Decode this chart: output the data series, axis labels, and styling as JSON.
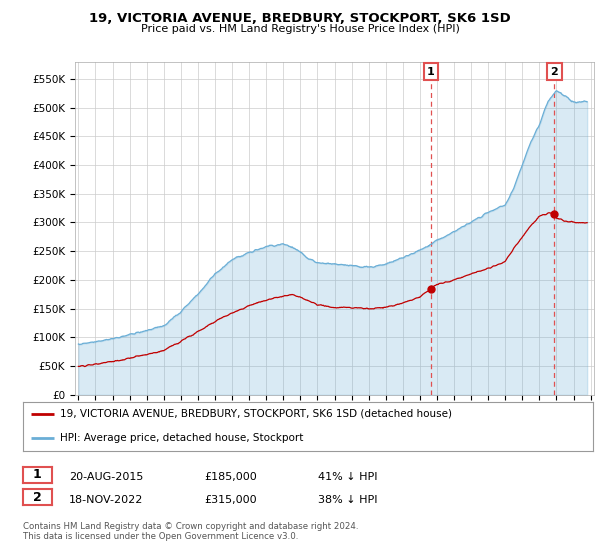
{
  "title_line1": "19, VICTORIA AVENUE, BREDBURY, STOCKPORT, SK6 1SD",
  "title_line2": "Price paid vs. HM Land Registry's House Price Index (HPI)",
  "ylabel_ticks": [
    "£0",
    "£50K",
    "£100K",
    "£150K",
    "£200K",
    "£250K",
    "£300K",
    "£350K",
    "£400K",
    "£450K",
    "£500K",
    "£550K"
  ],
  "ytick_values": [
    0,
    50000,
    100000,
    150000,
    200000,
    250000,
    300000,
    350000,
    400000,
    450000,
    500000,
    550000
  ],
  "ylim": [
    0,
    580000
  ],
  "xlim_start": 1994.8,
  "xlim_end": 2025.2,
  "hpi_color": "#6aaed6",
  "hpi_fill_color": "#ddeeff",
  "price_color": "#c00000",
  "vline_color": "#e05050",
  "marker1_date_x": 2015.64,
  "marker1_y": 185000,
  "marker2_date_x": 2022.88,
  "marker2_y": 315000,
  "annotation1_label": "1",
  "annotation2_label": "2",
  "legend_line1": "19, VICTORIA AVENUE, BREDBURY, STOCKPORT, SK6 1SD (detached house)",
  "legend_line2": "HPI: Average price, detached house, Stockport",
  "table_row1": [
    "1",
    "20-AUG-2015",
    "£185,000",
    "41% ↓ HPI"
  ],
  "table_row2": [
    "2",
    "18-NOV-2022",
    "£315,000",
    "38% ↓ HPI"
  ],
  "footnote": "Contains HM Land Registry data © Crown copyright and database right 2024.\nThis data is licensed under the Open Government Licence v3.0.",
  "background_color": "#ffffff",
  "grid_color": "#cccccc",
  "hpi_keypoints_x": [
    1995,
    1996,
    1997,
    1998,
    1999,
    2000,
    2001,
    2002,
    2003,
    2004,
    2005,
    2006,
    2007,
    2007.5,
    2008,
    2008.5,
    2009,
    2010,
    2011,
    2012,
    2013,
    2014,
    2015,
    2016,
    2017,
    2018,
    2019,
    2020,
    2020.5,
    2021,
    2021.5,
    2022,
    2022.5,
    2023,
    2023.5,
    2024,
    2024.5
  ],
  "hpi_keypoints_y": [
    88000,
    92000,
    98000,
    105000,
    112000,
    120000,
    145000,
    175000,
    210000,
    235000,
    248000,
    258000,
    262000,
    258000,
    248000,
    237000,
    230000,
    228000,
    225000,
    222000,
    228000,
    238000,
    252000,
    268000,
    285000,
    300000,
    318000,
    330000,
    360000,
    400000,
    440000,
    470000,
    510000,
    530000,
    520000,
    510000,
    510000
  ],
  "price_keypoints_x": [
    1995,
    1996,
    1997,
    1998,
    1999,
    2000,
    2001,
    2002,
    2003,
    2004,
    2005,
    2006,
    2007,
    2007.5,
    2008,
    2009,
    2010,
    2011,
    2012,
    2013,
    2014,
    2015,
    2015.64,
    2016,
    2017,
    2018,
    2019,
    2020,
    2020.5,
    2021,
    2021.5,
    2022,
    2022.5,
    2022.88,
    2023,
    2023.5,
    2024,
    2024.5
  ],
  "price_keypoints_y": [
    50000,
    53000,
    58000,
    64000,
    70000,
    77000,
    93000,
    110000,
    128000,
    143000,
    155000,
    165000,
    172000,
    175000,
    170000,
    157000,
    152000,
    152000,
    150000,
    153000,
    160000,
    170000,
    185000,
    192000,
    200000,
    210000,
    220000,
    232000,
    255000,
    275000,
    295000,
    310000,
    316000,
    315000,
    308000,
    302000,
    300000,
    300000
  ]
}
